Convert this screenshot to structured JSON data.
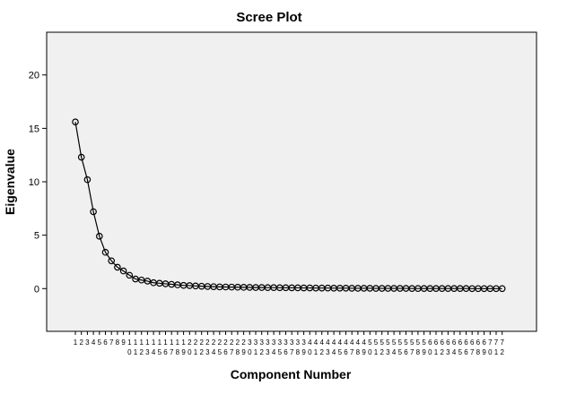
{
  "chart_data": {
    "type": "line",
    "title": "Scree Plot",
    "xlabel": "Component Number",
    "ylabel": "Eigenvalue",
    "ylim": [
      -4.0,
      24.0
    ],
    "y_ticks": [
      0,
      5,
      10,
      15,
      20
    ],
    "x": [
      1,
      2,
      3,
      4,
      5,
      6,
      7,
      8,
      9,
      10,
      11,
      12,
      13,
      14,
      15,
      16,
      17,
      18,
      19,
      20,
      21,
      22,
      23,
      24,
      25,
      26,
      27,
      28,
      29,
      30,
      31,
      32,
      33,
      34,
      35,
      36,
      37,
      38,
      39,
      40,
      41,
      42,
      43,
      44,
      45,
      46,
      47,
      48,
      49,
      50,
      51,
      52,
      53,
      54,
      55,
      56,
      57,
      58,
      59,
      60,
      61,
      62,
      63,
      64,
      65,
      66,
      67,
      68,
      69,
      70,
      71,
      72
    ],
    "series": [
      {
        "name": "",
        "values": [
          15.6,
          12.3,
          10.2,
          7.2,
          4.9,
          3.4,
          2.6,
          2.0,
          1.65,
          1.25,
          0.9,
          0.8,
          0.7,
          0.55,
          0.5,
          0.45,
          0.4,
          0.35,
          0.3,
          0.28,
          0.25,
          0.22,
          0.2,
          0.18,
          0.16,
          0.15,
          0.14,
          0.13,
          0.12,
          0.11,
          0.1,
          0.1,
          0.09,
          0.09,
          0.08,
          0.08,
          0.07,
          0.07,
          0.06,
          0.06,
          0.05,
          0.05,
          0.05,
          0.04,
          0.04,
          0.04,
          0.03,
          0.03,
          0.03,
          0.03,
          0.02,
          0.02,
          0.02,
          0.02,
          0.02,
          0.02,
          0.01,
          0.01,
          0.01,
          0.01,
          0.01,
          0.01,
          0.01,
          0.01,
          0.01,
          0.01,
          0.0,
          0.0,
          0.0,
          0.0,
          0.0,
          0.0
        ]
      }
    ],
    "grid": false,
    "plot_background": "#f0f0f0",
    "line_color": "#000000",
    "marker": "open-circle"
  }
}
